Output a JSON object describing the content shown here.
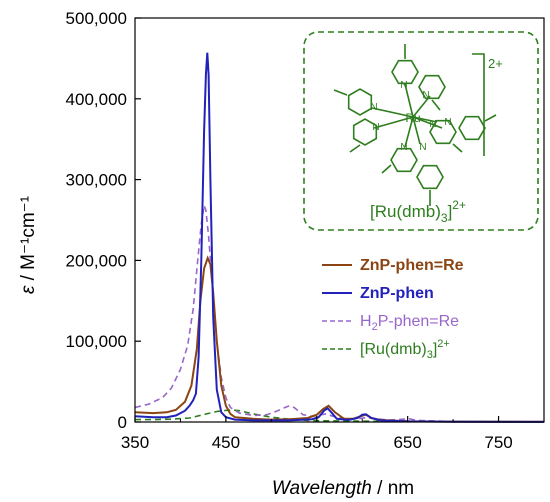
{
  "chart_data": {
    "type": "line",
    "xlabel_italic": "Wavelength",
    "xlabel_unit": " / nm",
    "ylabel_symbol": "ε",
    "ylabel_unit": " / M⁻¹cm⁻¹",
    "xlim": [
      350,
      800
    ],
    "ylim": [
      0,
      500000
    ],
    "xticks": [
      350,
      450,
      550,
      650,
      750
    ],
    "xtick_labels": [
      "350",
      "450",
      "550",
      "650",
      "750"
    ],
    "yticks": [
      0,
      100000,
      200000,
      300000,
      400000,
      500000
    ],
    "ytick_labels": [
      "0",
      "100,000",
      "200,000",
      "300,000",
      "400,000",
      "500,000"
    ],
    "grid": false,
    "legend_position": "center-right",
    "series": [
      {
        "name": "ZnP-phen=Re",
        "color": "#8b4513",
        "dash": "solid",
        "points": [
          [
            350,
            12000
          ],
          [
            370,
            11000
          ],
          [
            385,
            12000
          ],
          [
            395,
            15000
          ],
          [
            405,
            25000
          ],
          [
            412,
            45000
          ],
          [
            418,
            90000
          ],
          [
            422,
            150000
          ],
          [
            426,
            190000
          ],
          [
            430,
            203000
          ],
          [
            433,
            195000
          ],
          [
            436,
            160000
          ],
          [
            440,
            100000
          ],
          [
            445,
            45000
          ],
          [
            450,
            20000
          ],
          [
            455,
            10000
          ],
          [
            460,
            6000
          ],
          [
            470,
            5000
          ],
          [
            480,
            4000
          ],
          [
            500,
            3000
          ],
          [
            520,
            3500
          ],
          [
            540,
            5000
          ],
          [
            550,
            9000
          ],
          [
            557,
            16000
          ],
          [
            563,
            20000
          ],
          [
            570,
            12000
          ],
          [
            580,
            4000
          ],
          [
            590,
            4000
          ],
          [
            598,
            7000
          ],
          [
            604,
            9000
          ],
          [
            610,
            5000
          ],
          [
            620,
            2500
          ],
          [
            650,
            1000
          ],
          [
            700,
            500
          ],
          [
            800,
            200
          ]
        ]
      },
      {
        "name": "ZnP-phen",
        "color": "#2222bb",
        "dash": "solid",
        "points": [
          [
            350,
            7000
          ],
          [
            370,
            6000
          ],
          [
            385,
            6000
          ],
          [
            395,
            8000
          ],
          [
            405,
            14000
          ],
          [
            410,
            20000
          ],
          [
            414,
            27000
          ],
          [
            417,
            35000
          ],
          [
            420,
            80000
          ],
          [
            423,
            200000
          ],
          [
            426,
            360000
          ],
          [
            428,
            430000
          ],
          [
            429.5,
            457000
          ],
          [
            431,
            430000
          ],
          [
            433,
            300000
          ],
          [
            436,
            130000
          ],
          [
            440,
            40000
          ],
          [
            445,
            12000
          ],
          [
            450,
            6000
          ],
          [
            460,
            3000
          ],
          [
            480,
            2000
          ],
          [
            520,
            2000
          ],
          [
            545,
            3500
          ],
          [
            552,
            6000
          ],
          [
            558,
            14000
          ],
          [
            562,
            17000
          ],
          [
            566,
            12000
          ],
          [
            572,
            4000
          ],
          [
            585,
            2500
          ],
          [
            595,
            5000
          ],
          [
            600,
            9000
          ],
          [
            604,
            9500
          ],
          [
            610,
            5000
          ],
          [
            620,
            2000
          ],
          [
            650,
            700
          ],
          [
            700,
            300
          ],
          [
            800,
            100
          ]
        ]
      },
      {
        "name": "H₂P-phen=Re",
        "name_base": "H",
        "name_sub": "2",
        "name_rest": "P-phen=Re",
        "color": "#9966cc",
        "dash": "dashed",
        "points": [
          [
            350,
            18000
          ],
          [
            365,
            22000
          ],
          [
            380,
            30000
          ],
          [
            390,
            42000
          ],
          [
            400,
            65000
          ],
          [
            408,
            95000
          ],
          [
            414,
            140000
          ],
          [
            419,
            200000
          ],
          [
            423,
            245000
          ],
          [
            426,
            268000
          ],
          [
            428,
            262000
          ],
          [
            431,
            230000
          ],
          [
            435,
            170000
          ],
          [
            440,
            100000
          ],
          [
            445,
            55000
          ],
          [
            450,
            30000
          ],
          [
            455,
            18000
          ],
          [
            465,
            11000
          ],
          [
            480,
            8000
          ],
          [
            495,
            9000
          ],
          [
            505,
            13000
          ],
          [
            515,
            18000
          ],
          [
            520,
            20000
          ],
          [
            525,
            18000
          ],
          [
            535,
            9000
          ],
          [
            545,
            7000
          ],
          [
            555,
            9000
          ],
          [
            560,
            10000
          ],
          [
            568,
            7000
          ],
          [
            580,
            4000
          ],
          [
            595,
            4000
          ],
          [
            605,
            5500
          ],
          [
            615,
            4000
          ],
          [
            630,
            2500
          ],
          [
            645,
            3500
          ],
          [
            652,
            4000
          ],
          [
            660,
            2000
          ],
          [
            700,
            600
          ],
          [
            800,
            200
          ]
        ]
      },
      {
        "name": "[Ru(dmb)₃]²⁺",
        "name_base": "[Ru(dmb)",
        "name_sub": "3",
        "name_rest": "]",
        "name_sup": "2+",
        "color": "#2e7d1e",
        "dash": "dashed",
        "points": [
          [
            350,
            3000
          ],
          [
            370,
            3000
          ],
          [
            390,
            3500
          ],
          [
            410,
            5000
          ],
          [
            425,
            9000
          ],
          [
            440,
            13000
          ],
          [
            455,
            15000
          ],
          [
            465,
            14000
          ],
          [
            480,
            10000
          ],
          [
            500,
            6000
          ],
          [
            520,
            3500
          ],
          [
            540,
            2000
          ],
          [
            560,
            1500
          ],
          [
            600,
            1000
          ],
          [
            700,
            500
          ],
          [
            800,
            300
          ]
        ]
      }
    ]
  },
  "inset": {
    "label_base": "[Ru(dmb)",
    "label_sub": "3",
    "label_rest": "]",
    "label_sup": "2+",
    "charge_label": "2+",
    "metal_label": "Ru",
    "n_label": "N",
    "color": "#2e7d1e"
  }
}
